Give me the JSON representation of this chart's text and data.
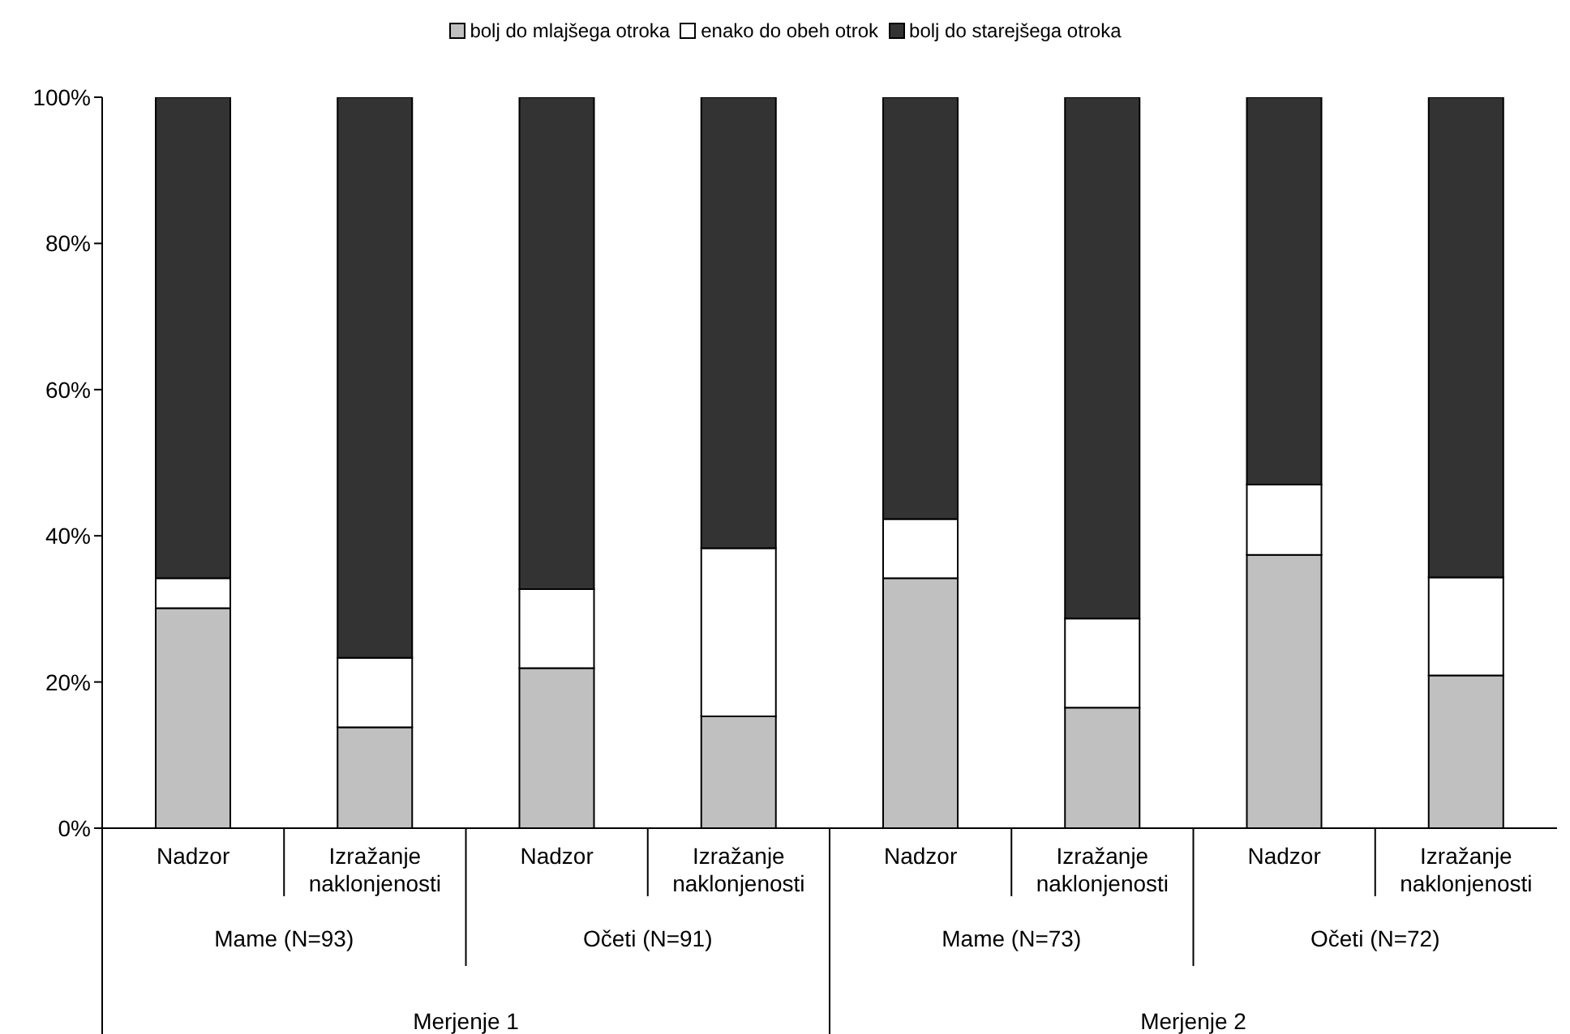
{
  "chart_data": {
    "type": "bar",
    "stacked": true,
    "categories": [
      "Nadzor",
      "Izražanje naklonjenosti",
      "Nadzor",
      "Izražanje naklonjenosti",
      "Nadzor",
      "Izražanje naklonjenosti",
      "Nadzor",
      "Izražanje naklonjenosti"
    ],
    "series": [
      {
        "name": "bolj do mlajšega otroka",
        "color": "#c0c0c0",
        "values": [
          30.1,
          13.8,
          21.9,
          15.3,
          34.2,
          16.5,
          37.4,
          20.9
        ]
      },
      {
        "name": "enako do obeh otrok",
        "color": "#ffffff",
        "values": [
          4.1,
          9.5,
          10.8,
          23.0,
          8.1,
          12.2,
          9.6,
          13.4
        ]
      },
      {
        "name": "bolj do starejšega otroka",
        "color": "#333333",
        "values": [
          65.8,
          76.7,
          67.3,
          61.7,
          57.7,
          71.3,
          53.0,
          65.7
        ]
      }
    ],
    "ylim": [
      0,
      100
    ],
    "yticks": [
      {
        "value": 0,
        "label": "0%"
      },
      {
        "value": 20,
        "label": "20%"
      },
      {
        "value": 40,
        "label": "40%"
      },
      {
        "value": 60,
        "label": "60%"
      },
      {
        "value": 80,
        "label": "80%"
      },
      {
        "value": 100,
        "label": "100%"
      }
    ],
    "grid": false,
    "legend": "top",
    "annotations": [
      "Mame (N=93)",
      "Očeti (N=91)",
      "Mame (N=73)",
      "Očeti (N=72)",
      "Merjenje 1",
      "Merjenje 2"
    ]
  }
}
